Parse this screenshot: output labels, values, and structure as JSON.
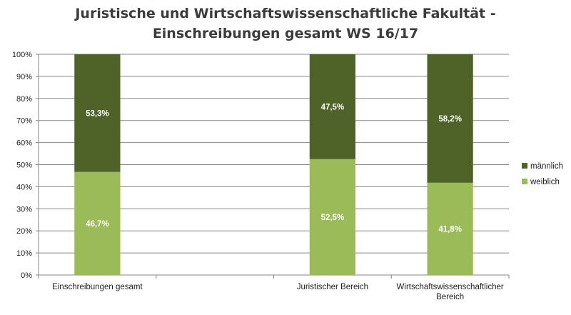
{
  "chart_data": {
    "type": "bar",
    "stacked": true,
    "title": [
      "Juristische und Wirtschaftswissenschaftliche Fakultät -",
      "Einschreibungen gesamt WS 16/17"
    ],
    "xlabel": "",
    "ylabel": "",
    "ylim": [
      0,
      100
    ],
    "yticks": [
      "0%",
      "10%",
      "20%",
      "30%",
      "40%",
      "50%",
      "60%",
      "70%",
      "80%",
      "90%",
      "100%"
    ],
    "categories": [
      [
        "Einschreibungen gesamt"
      ],
      [
        ""
      ],
      [
        "Juristischer Bereich"
      ],
      [
        "Wirtschaftswissenschaftlicher",
        "Bereich"
      ]
    ],
    "series": [
      {
        "name": "weiblich",
        "color": "#9bbb59",
        "values": [
          46.7,
          null,
          52.5,
          41.8
        ],
        "labels": [
          "46,7%",
          "",
          "52,5%",
          "41,8%"
        ]
      },
      {
        "name": "männlich",
        "color": "#4f6228",
        "values": [
          53.3,
          null,
          47.5,
          58.2
        ],
        "labels": [
          "53,3%",
          "",
          "47,5%",
          "58,2%"
        ]
      }
    ],
    "legend_position": "right",
    "grid": true
  }
}
